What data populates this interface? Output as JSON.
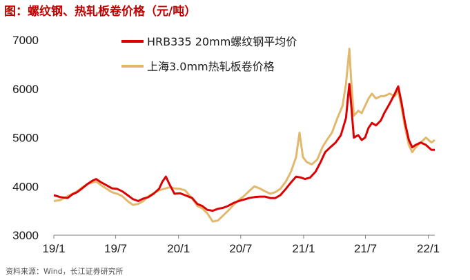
{
  "title": "图：螺纹钢、热轧板卷价格（元/吨）",
  "source": "资料来源：Wind，长江证券研究所",
  "colors": {
    "rebar": "#dd0000",
    "hrc": "#e2b86c",
    "title": "#c00000"
  },
  "chart_data": {
    "type": "line",
    "x_type": "date",
    "x_range": [
      "2019-01-01",
      "2022-01-20"
    ],
    "ylim": [
      3000,
      7000
    ],
    "yticks": [
      3000,
      4000,
      5000,
      6000,
      7000
    ],
    "xticks": [
      {
        "date": "2019-01-01",
        "label": "19/1"
      },
      {
        "date": "2019-07-01",
        "label": "19/7"
      },
      {
        "date": "2020-01-01",
        "label": "20/1"
      },
      {
        "date": "2020-07-01",
        "label": "20/7"
      },
      {
        "date": "2021-01-01",
        "label": "21/1"
      },
      {
        "date": "2021-07-01",
        "label": "21/7"
      },
      {
        "date": "2022-01-01",
        "label": "22/1"
      }
    ],
    "legend_position": "top-center",
    "series": [
      {
        "name": "HRB335 20mm螺纹钢平均价",
        "color": "#dd0000",
        "points": [
          [
            "2019-01-01",
            3820
          ],
          [
            "2019-01-20",
            3780
          ],
          [
            "2019-02-10",
            3760
          ],
          [
            "2019-02-25",
            3840
          ],
          [
            "2019-03-10",
            3880
          ],
          [
            "2019-03-25",
            3960
          ],
          [
            "2019-04-10",
            4050
          ],
          [
            "2019-04-25",
            4120
          ],
          [
            "2019-05-05",
            4150
          ],
          [
            "2019-05-20",
            4080
          ],
          [
            "2019-06-05",
            4020
          ],
          [
            "2019-06-20",
            3960
          ],
          [
            "2019-07-05",
            3950
          ],
          [
            "2019-07-20",
            3900
          ],
          [
            "2019-08-05",
            3820
          ],
          [
            "2019-08-20",
            3740
          ],
          [
            "2019-09-05",
            3700
          ],
          [
            "2019-09-20",
            3750
          ],
          [
            "2019-10-05",
            3780
          ],
          [
            "2019-10-20",
            3850
          ],
          [
            "2019-11-05",
            3950
          ],
          [
            "2019-11-15",
            4100
          ],
          [
            "2019-11-25",
            4200
          ],
          [
            "2019-12-05",
            4050
          ],
          [
            "2019-12-20",
            3850
          ],
          [
            "2020-01-05",
            3860
          ],
          [
            "2020-01-20",
            3820
          ],
          [
            "2020-02-10",
            3760
          ],
          [
            "2020-02-25",
            3640
          ],
          [
            "2020-03-10",
            3600
          ],
          [
            "2020-03-25",
            3520
          ],
          [
            "2020-04-10",
            3500
          ],
          [
            "2020-04-25",
            3540
          ],
          [
            "2020-05-10",
            3560
          ],
          [
            "2020-05-25",
            3600
          ],
          [
            "2020-06-10",
            3660
          ],
          [
            "2020-06-25",
            3700
          ],
          [
            "2020-07-10",
            3730
          ],
          [
            "2020-07-25",
            3760
          ],
          [
            "2020-08-10",
            3780
          ],
          [
            "2020-08-25",
            3790
          ],
          [
            "2020-09-10",
            3790
          ],
          [
            "2020-09-25",
            3760
          ],
          [
            "2020-10-10",
            3760
          ],
          [
            "2020-10-25",
            3820
          ],
          [
            "2020-11-10",
            3950
          ],
          [
            "2020-11-25",
            4080
          ],
          [
            "2020-12-10",
            4200
          ],
          [
            "2020-12-25",
            4180
          ],
          [
            "2021-01-05",
            4150
          ],
          [
            "2021-01-20",
            4180
          ],
          [
            "2021-02-05",
            4300
          ],
          [
            "2021-02-20",
            4500
          ],
          [
            "2021-03-05",
            4700
          ],
          [
            "2021-03-20",
            4800
          ],
          [
            "2021-04-05",
            4900
          ],
          [
            "2021-04-20",
            5050
          ],
          [
            "2021-05-05",
            5400
          ],
          [
            "2021-05-12",
            5900
          ],
          [
            "2021-05-15",
            6100
          ],
          [
            "2021-05-20",
            5700
          ],
          [
            "2021-05-28",
            5000
          ],
          [
            "2021-06-10",
            5050
          ],
          [
            "2021-06-20",
            4950
          ],
          [
            "2021-06-30",
            5000
          ],
          [
            "2021-07-10",
            5200
          ],
          [
            "2021-07-20",
            5300
          ],
          [
            "2021-08-01",
            5250
          ],
          [
            "2021-08-15",
            5350
          ],
          [
            "2021-08-25",
            5500
          ],
          [
            "2021-09-10",
            5700
          ],
          [
            "2021-09-25",
            5900
          ],
          [
            "2021-10-05",
            6050
          ],
          [
            "2021-10-15",
            5700
          ],
          [
            "2021-10-25",
            5300
          ],
          [
            "2021-11-05",
            4950
          ],
          [
            "2021-11-15",
            4800
          ],
          [
            "2021-11-25",
            4850
          ],
          [
            "2021-12-10",
            4900
          ],
          [
            "2021-12-25",
            4850
          ],
          [
            "2022-01-10",
            4750
          ],
          [
            "2022-01-20",
            4750
          ]
        ]
      },
      {
        "name": "上海3.0mm热轧板卷价格",
        "color": "#e2b86c",
        "points": [
          [
            "2019-01-01",
            3700
          ],
          [
            "2019-01-20",
            3720
          ],
          [
            "2019-02-10",
            3800
          ],
          [
            "2019-02-25",
            3850
          ],
          [
            "2019-03-10",
            3900
          ],
          [
            "2019-03-25",
            3980
          ],
          [
            "2019-04-10",
            4050
          ],
          [
            "2019-04-25",
            4080
          ],
          [
            "2019-05-05",
            4100
          ],
          [
            "2019-05-20",
            4020
          ],
          [
            "2019-06-05",
            3950
          ],
          [
            "2019-06-20",
            3880
          ],
          [
            "2019-07-05",
            3850
          ],
          [
            "2019-07-20",
            3800
          ],
          [
            "2019-08-05",
            3700
          ],
          [
            "2019-08-20",
            3620
          ],
          [
            "2019-09-05",
            3640
          ],
          [
            "2019-09-20",
            3700
          ],
          [
            "2019-10-05",
            3800
          ],
          [
            "2019-10-20",
            3860
          ],
          [
            "2019-11-05",
            3920
          ],
          [
            "2019-11-20",
            3950
          ],
          [
            "2019-12-05",
            3980
          ],
          [
            "2019-12-20",
            3960
          ],
          [
            "2020-01-05",
            3950
          ],
          [
            "2020-01-20",
            3920
          ],
          [
            "2020-02-10",
            3750
          ],
          [
            "2020-02-25",
            3600
          ],
          [
            "2020-03-10",
            3550
          ],
          [
            "2020-03-25",
            3450
          ],
          [
            "2020-04-10",
            3280
          ],
          [
            "2020-04-25",
            3300
          ],
          [
            "2020-05-10",
            3400
          ],
          [
            "2020-05-25",
            3500
          ],
          [
            "2020-06-10",
            3620
          ],
          [
            "2020-06-25",
            3720
          ],
          [
            "2020-07-10",
            3800
          ],
          [
            "2020-07-25",
            3900
          ],
          [
            "2020-08-10",
            4000
          ],
          [
            "2020-08-25",
            3960
          ],
          [
            "2020-09-10",
            3900
          ],
          [
            "2020-09-25",
            3850
          ],
          [
            "2020-10-10",
            3880
          ],
          [
            "2020-10-25",
            3950
          ],
          [
            "2020-11-10",
            4100
          ],
          [
            "2020-11-25",
            4300
          ],
          [
            "2020-12-10",
            4600
          ],
          [
            "2020-12-20",
            5100
          ],
          [
            "2020-12-30",
            4600
          ],
          [
            "2021-01-10",
            4500
          ],
          [
            "2021-01-25",
            4450
          ],
          [
            "2021-02-10",
            4550
          ],
          [
            "2021-02-25",
            4800
          ],
          [
            "2021-03-10",
            4950
          ],
          [
            "2021-03-25",
            5100
          ],
          [
            "2021-04-10",
            5400
          ],
          [
            "2021-04-25",
            5650
          ],
          [
            "2021-05-05",
            6100
          ],
          [
            "2021-05-12",
            6600
          ],
          [
            "2021-05-15",
            6820
          ],
          [
            "2021-05-20",
            6200
          ],
          [
            "2021-05-28",
            5450
          ],
          [
            "2021-06-10",
            5550
          ],
          [
            "2021-06-20",
            5500
          ],
          [
            "2021-06-30",
            5650
          ],
          [
            "2021-07-10",
            5800
          ],
          [
            "2021-07-20",
            5900
          ],
          [
            "2021-08-01",
            5800
          ],
          [
            "2021-08-15",
            5850
          ],
          [
            "2021-08-25",
            5850
          ],
          [
            "2021-09-10",
            5900
          ],
          [
            "2021-09-25",
            5850
          ],
          [
            "2021-10-05",
            5950
          ],
          [
            "2021-10-15",
            5600
          ],
          [
            "2021-10-25",
            5200
          ],
          [
            "2021-11-05",
            4850
          ],
          [
            "2021-11-15",
            4700
          ],
          [
            "2021-11-25",
            4800
          ],
          [
            "2021-12-10",
            4900
          ],
          [
            "2021-12-25",
            5000
          ],
          [
            "2022-01-10",
            4900
          ],
          [
            "2022-01-20",
            4950
          ]
        ]
      }
    ]
  }
}
